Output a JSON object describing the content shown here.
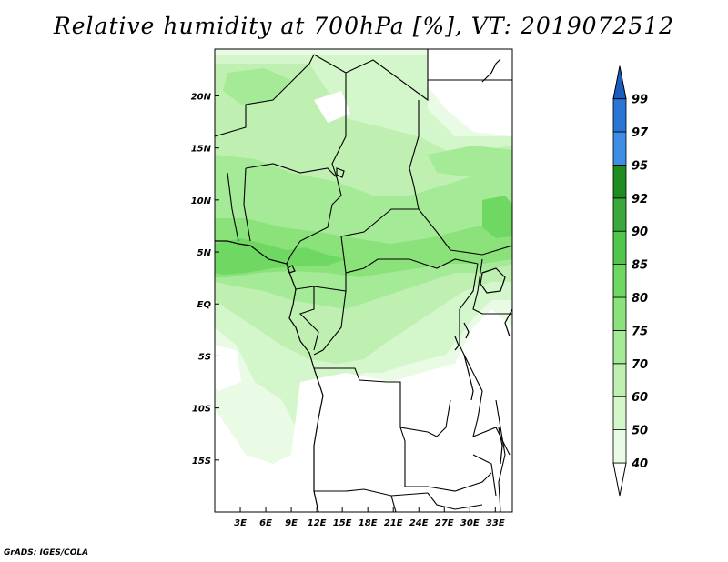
{
  "title": "Relative humidity at 700hPa [%], VT: 2019072512",
  "footer": "GrADS: IGES/COLA",
  "map": {
    "lat_labels": [
      "20N",
      "15N",
      "10N",
      "5N",
      "EQ",
      "5S",
      "10S",
      "15S"
    ],
    "lat_values": [
      20,
      15,
      10,
      5,
      0,
      -5,
      -10,
      -15
    ],
    "lon_labels": [
      "3E",
      "6E",
      "9E",
      "12E",
      "15E",
      "18E",
      "21E",
      "24E",
      "27E",
      "30E",
      "33E"
    ],
    "lon_values": [
      3,
      6,
      9,
      12,
      15,
      18,
      21,
      24,
      27,
      30,
      33
    ],
    "lat_range": [
      -20,
      24.5
    ],
    "lon_range": [
      0,
      35
    ],
    "variable": "Relative humidity",
    "level": "700hPa",
    "units": "%"
  },
  "colorbar": {
    "levels": [
      "40",
      "50",
      "60",
      "70",
      "75",
      "80",
      "85",
      "90",
      "92",
      "95",
      "97",
      "99"
    ],
    "colors": [
      "#ffffff",
      "#e9fbe5",
      "#d4f6cb",
      "#bff0b1",
      "#a5ea96",
      "#8be27b",
      "#6fd862",
      "#52c64a",
      "#3aa83a",
      "#1f8c1f",
      "#3e8ee6",
      "#2a74d6",
      "#1b5cbf"
    ]
  },
  "colors": {
    "land_line": "#000000",
    "frame": "#000000"
  }
}
